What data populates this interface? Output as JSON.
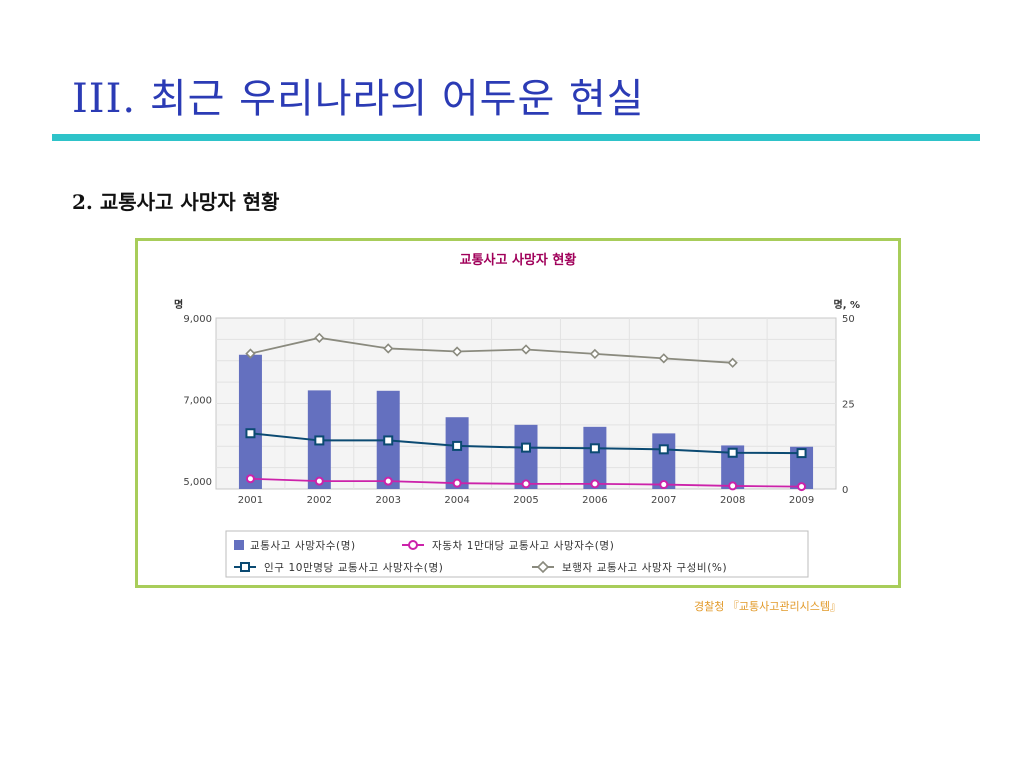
{
  "slide": {
    "title": "III. 최근 우리나라의 어두운 현실",
    "section_heading": "2. 교통사고 사망자 현황",
    "source": "경찰청 『교통사고관리시스템』"
  },
  "colors": {
    "title": "#2b3bb5",
    "rule": "#2ec3c9",
    "frame": "#a8cd5a",
    "chart_title": "#a0005a",
    "bars": "#6470bf",
    "per_vehicle": "#cc22aa",
    "per_population": "#0b4a72",
    "pedestrian": "#8a8a7e",
    "source": "#e29a2a"
  },
  "chart_data": {
    "type": "bar",
    "title": "교통사고 사망자 현황",
    "y_left_unit": "명",
    "y_right_unit": "명, %",
    "ylim_left": [
      4800,
      9000
    ],
    "ylim_right": [
      0,
      50
    ],
    "y_left_ticks": [
      "9,000",
      "7,000",
      "5,000"
    ],
    "y_right_ticks": [
      "50",
      "25",
      "0"
    ],
    "categories": [
      "2001",
      "2002",
      "2003",
      "2004",
      "2005",
      "2006",
      "2007",
      "2008",
      "2009"
    ],
    "grid": true,
    "legend_position": "bottom",
    "series": [
      {
        "name": "교통사고 사망자수(명)",
        "type": "bar",
        "axis": "left",
        "values": [
          8097,
          7222,
          7212,
          6563,
          6376,
          6327,
          6166,
          5870,
          5838
        ]
      },
      {
        "name": "자동차 1만대당 교통사고 사망자수(명)",
        "type": "line",
        "axis": "right",
        "marker": "circle",
        "values": [
          3.0,
          2.3,
          2.3,
          1.7,
          1.5,
          1.5,
          1.3,
          0.9,
          0.7
        ]
      },
      {
        "name": "인구 10만명당 교통사고 사망자수(명)",
        "type": "line",
        "axis": "right",
        "marker": "square",
        "values": [
          16.3,
          14.2,
          14.2,
          12.6,
          12.1,
          11.9,
          11.6,
          10.6,
          10.5
        ]
      },
      {
        "name": "보행자 교통사고 사망자 구성비(%)",
        "type": "line",
        "axis": "right",
        "marker": "diamond",
        "values": [
          39.6,
          44.2,
          41.1,
          40.2,
          40.8,
          39.5,
          38.2,
          36.9,
          null
        ]
      }
    ]
  }
}
